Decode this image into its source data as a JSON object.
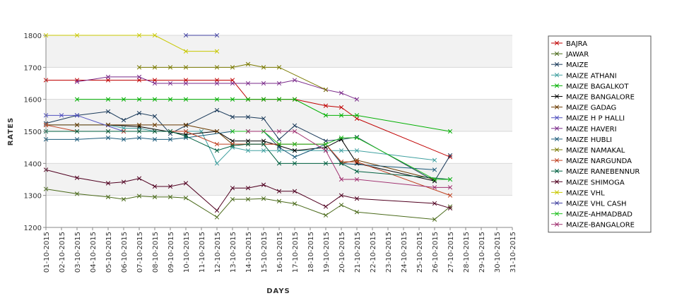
{
  "chart_data": {
    "type": "line",
    "xlabel": "DAYS",
    "ylabel": "RATES",
    "ylim": [
      1200,
      1800
    ],
    "yticks": [
      1200,
      1300,
      1400,
      1500,
      1600,
      1700,
      1800
    ],
    "categories": [
      "01-10-2015",
      "02-10-2015",
      "03-10-2015",
      "04-10-2015",
      "05-10-2015",
      "06-10-2015",
      "07-10-2015",
      "08-10-2015",
      "09-10-2015",
      "10-10-2015",
      "11-10-2015",
      "12-10-2015",
      "13-10-2015",
      "14-10-2015",
      "15-10-2015",
      "16-10-2015",
      "17-10-2015",
      "18-10-2015",
      "19-10-2015",
      "20-10-2015",
      "21-10-2015",
      "22-10-2015",
      "23-10-2015",
      "24-10-2015",
      "25-10-2015",
      "26-10-2015",
      "27-10-2015",
      "28-10-2015",
      "29-10-2015",
      "30-10-2015",
      "31-10-2015"
    ],
    "grid": true,
    "legend_position": "right",
    "series": [
      {
        "name": "BAJRA",
        "color": "#c00000",
        "points": [
          [
            0,
            1660
          ],
          [
            2,
            1660
          ],
          [
            4,
            1660
          ],
          [
            6,
            1660
          ],
          [
            7,
            1660
          ],
          [
            9,
            1660
          ],
          [
            11,
            1660
          ],
          [
            12,
            1660
          ],
          [
            13,
            1600
          ],
          [
            14,
            1600
          ],
          [
            15,
            1600
          ],
          [
            16,
            1600
          ],
          [
            18,
            1580
          ],
          [
            19,
            1575
          ],
          [
            20,
            1540
          ],
          [
            26,
            1420
          ]
        ]
      },
      {
        "name": "JAWAR",
        "color": "#4a6a1a",
        "points": [
          [
            0,
            1320
          ],
          [
            2,
            1305
          ],
          [
            4,
            1295
          ],
          [
            5,
            1288
          ],
          [
            6,
            1298
          ],
          [
            7,
            1295
          ],
          [
            8,
            1295
          ],
          [
            9,
            1292
          ],
          [
            11,
            1232
          ],
          [
            12,
            1288
          ],
          [
            13,
            1288
          ],
          [
            14,
            1290
          ],
          [
            15,
            1282
          ],
          [
            16,
            1274
          ],
          [
            18,
            1238
          ],
          [
            19,
            1270
          ],
          [
            20,
            1248
          ],
          [
            25,
            1225
          ],
          [
            26,
            1265
          ]
        ]
      },
      {
        "name": "MAIZE",
        "color": "#1a3a5a",
        "points": [
          [
            0,
            1525
          ],
          [
            2,
            1550
          ],
          [
            4,
            1562
          ],
          [
            5,
            1535
          ],
          [
            6,
            1557
          ],
          [
            7,
            1547
          ],
          [
            8,
            1493
          ],
          [
            9,
            1518
          ],
          [
            11,
            1566
          ],
          [
            12,
            1545
          ],
          [
            13,
            1545
          ],
          [
            14,
            1540
          ],
          [
            15,
            1475
          ],
          [
            16,
            1518
          ],
          [
            18,
            1470
          ],
          [
            19,
            1475
          ],
          [
            20,
            1482
          ],
          [
            25,
            1345
          ],
          [
            26,
            1425
          ]
        ]
      },
      {
        "name": "MAIZE ATHANI",
        "color": "#40a0a0",
        "points": [
          [
            0,
            1520
          ],
          [
            2,
            1520
          ],
          [
            4,
            1520
          ],
          [
            5,
            1510
          ],
          [
            6,
            1510
          ],
          [
            7,
            1500
          ],
          [
            8,
            1500
          ],
          [
            9,
            1500
          ],
          [
            10,
            1500
          ],
          [
            11,
            1400
          ],
          [
            12,
            1450
          ],
          [
            13,
            1440
          ],
          [
            14,
            1440
          ],
          [
            15,
            1440
          ],
          [
            16,
            1440
          ],
          [
            18,
            1440
          ],
          [
            19,
            1440
          ],
          [
            20,
            1440
          ],
          [
            25,
            1410
          ]
        ]
      },
      {
        "name": "MAIZE BAGALKOT",
        "color": "#00b000",
        "points": [
          [
            2,
            1600
          ],
          [
            4,
            1600
          ],
          [
            5,
            1600
          ],
          [
            6,
            1600
          ],
          [
            7,
            1600
          ],
          [
            8,
            1600
          ],
          [
            9,
            1600
          ],
          [
            11,
            1600
          ],
          [
            12,
            1600
          ],
          [
            13,
            1600
          ],
          [
            14,
            1600
          ],
          [
            15,
            1600
          ],
          [
            16,
            1600
          ],
          [
            18,
            1550
          ],
          [
            19,
            1550
          ],
          [
            20,
            1550
          ],
          [
            26,
            1500
          ]
        ]
      },
      {
        "name": "MAIZE BANGALORE",
        "color": "#000000",
        "points": [
          [
            4,
            1520
          ],
          [
            6,
            1515
          ],
          [
            9,
            1490
          ],
          [
            11,
            1500
          ],
          [
            12,
            1470
          ],
          [
            13,
            1470
          ],
          [
            14,
            1470
          ],
          [
            15,
            1455
          ],
          [
            16,
            1440
          ],
          [
            18,
            1450
          ],
          [
            19,
            1475
          ],
          [
            20,
            1400
          ],
          [
            25,
            1345
          ]
        ]
      },
      {
        "name": "MAIZE GADAG",
        "color": "#6a3a00",
        "points": [
          [
            0,
            1520
          ],
          [
            2,
            1520
          ],
          [
            4,
            1520
          ],
          [
            6,
            1520
          ],
          [
            7,
            1520
          ],
          [
            9,
            1520
          ],
          [
            11,
            1500
          ],
          [
            12,
            1460
          ],
          [
            13,
            1460
          ],
          [
            14,
            1460
          ],
          [
            15,
            1460
          ],
          [
            16,
            1460
          ],
          [
            18,
            1460
          ],
          [
            19,
            1400
          ],
          [
            20,
            1410
          ],
          [
            25,
            1350
          ]
        ]
      },
      {
        "name": "MAIZE H P HALLI",
        "color": "#5050c0",
        "points": [
          [
            0,
            1550
          ],
          [
            1,
            1550
          ],
          [
            2,
            1550
          ],
          [
            5,
            1500
          ]
        ]
      },
      {
        "name": "MAIZE HAVERI",
        "color": "#7a2a8a",
        "points": [
          [
            2,
            1655
          ],
          [
            4,
            1670
          ],
          [
            6,
            1670
          ],
          [
            7,
            1650
          ],
          [
            8,
            1650
          ],
          [
            9,
            1650
          ],
          [
            11,
            1650
          ],
          [
            12,
            1650
          ],
          [
            13,
            1650
          ],
          [
            14,
            1650
          ],
          [
            15,
            1650
          ],
          [
            16,
            1660
          ],
          [
            18,
            1630
          ],
          [
            19,
            1620
          ],
          [
            20,
            1600
          ]
        ]
      },
      {
        "name": "MAIZE HUBLI",
        "color": "#1a5a7a",
        "points": [
          [
            0,
            1475
          ],
          [
            2,
            1475
          ],
          [
            4,
            1480
          ],
          [
            5,
            1475
          ],
          [
            6,
            1480
          ],
          [
            7,
            1475
          ],
          [
            8,
            1475
          ],
          [
            9,
            1480
          ],
          [
            12,
            1500
          ],
          [
            13,
            1500
          ],
          [
            14,
            1500
          ],
          [
            15,
            1450
          ],
          [
            16,
            1420
          ],
          [
            18,
            1460
          ],
          [
            19,
            1400
          ],
          [
            25,
            1380
          ]
        ]
      },
      {
        "name": "MAIZE NAMAKAL",
        "color": "#7a7a00",
        "points": [
          [
            6,
            1700
          ],
          [
            7,
            1700
          ],
          [
            8,
            1700
          ],
          [
            9,
            1700
          ],
          [
            11,
            1700
          ],
          [
            12,
            1700
          ],
          [
            13,
            1710
          ],
          [
            14,
            1700
          ],
          [
            15,
            1700
          ],
          [
            18,
            1630
          ]
        ]
      },
      {
        "name": "MAIZE NARGUNDA",
        "color": "#c04020",
        "points": [
          [
            0,
            1520
          ],
          [
            2,
            1500
          ],
          [
            4,
            1500
          ],
          [
            5,
            1500
          ],
          [
            6,
            1500
          ],
          [
            7,
            1500
          ],
          [
            8,
            1500
          ],
          [
            9,
            1500
          ],
          [
            11,
            1460
          ],
          [
            12,
            1460
          ],
          [
            13,
            1460
          ],
          [
            14,
            1460
          ],
          [
            15,
            1460
          ],
          [
            16,
            1460
          ],
          [
            18,
            1460
          ],
          [
            19,
            1405
          ],
          [
            20,
            1405
          ],
          [
            26,
            1300
          ]
        ]
      },
      {
        "name": "MAIZE RANEBENNUR",
        "color": "#006040",
        "points": [
          [
            0,
            1500
          ],
          [
            2,
            1500
          ],
          [
            4,
            1500
          ],
          [
            6,
            1500
          ],
          [
            7,
            1500
          ],
          [
            8,
            1500
          ],
          [
            9,
            1485
          ],
          [
            11,
            1440
          ],
          [
            12,
            1455
          ],
          [
            13,
            1460
          ],
          [
            14,
            1460
          ],
          [
            15,
            1400
          ],
          [
            16,
            1400
          ],
          [
            18,
            1400
          ],
          [
            19,
            1400
          ],
          [
            20,
            1375
          ],
          [
            26,
            1350
          ]
        ]
      },
      {
        "name": "MAIZE SHIMOGA",
        "color": "#500020",
        "points": [
          [
            0,
            1380
          ],
          [
            2,
            1355
          ],
          [
            4,
            1338
          ],
          [
            5,
            1342
          ],
          [
            6,
            1353
          ],
          [
            7,
            1328
          ],
          [
            8,
            1328
          ],
          [
            9,
            1338
          ],
          [
            11,
            1253
          ],
          [
            12,
            1323
          ],
          [
            13,
            1323
          ],
          [
            14,
            1333
          ],
          [
            15,
            1313
          ],
          [
            16,
            1313
          ],
          [
            18,
            1265
          ],
          [
            19,
            1300
          ],
          [
            20,
            1290
          ],
          [
            25,
            1275
          ],
          [
            26,
            1260
          ]
        ]
      },
      {
        "name": "MAIZE VHL",
        "color": "#c8c800",
        "points": [
          [
            0,
            1800
          ],
          [
            2,
            1800
          ],
          [
            6,
            1800
          ],
          [
            7,
            1800
          ],
          [
            9,
            1750
          ],
          [
            11,
            1750
          ]
        ]
      },
      {
        "name": "MAIZE VHL CASH",
        "color": "#4040a0",
        "points": [
          [
            9,
            1800
          ],
          [
            11,
            1800
          ]
        ]
      },
      {
        "name": "MAIZE-AHMADBAD",
        "color": "#20c020",
        "points": [
          [
            12,
            1500
          ],
          [
            13,
            1500
          ],
          [
            14,
            1500
          ],
          [
            15,
            1460
          ],
          [
            16,
            1460
          ],
          [
            18,
            1460
          ],
          [
            19,
            1480
          ],
          [
            20,
            1480
          ],
          [
            25,
            1350
          ],
          [
            26,
            1350
          ]
        ]
      },
      {
        "name": "MAIZE-BANGALORE",
        "color": "#a03070",
        "points": [
          [
            13,
            1500
          ],
          [
            15,
            1500
          ],
          [
            16,
            1500
          ],
          [
            18,
            1440
          ],
          [
            19,
            1350
          ],
          [
            20,
            1350
          ],
          [
            25,
            1325
          ],
          [
            26,
            1325
          ]
        ]
      }
    ]
  }
}
